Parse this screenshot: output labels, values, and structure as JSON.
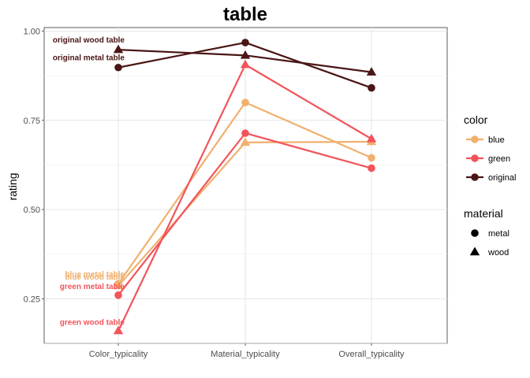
{
  "chart_data": {
    "type": "line",
    "title": "table",
    "xlabel": "",
    "ylabel": "rating",
    "categories": [
      "Color_typicality",
      "Material_typicality",
      "Overall_typicality"
    ],
    "ylim": [
      0.125,
      1.01
    ],
    "yticks": [
      0.25,
      0.5,
      0.75,
      1.0
    ],
    "ytick_labels": [
      "0.25",
      "0.50",
      "0.75",
      "1.00"
    ],
    "grid": true,
    "legend_position": "right",
    "legends": {
      "color": {
        "title": "color",
        "entries": [
          {
            "label": "blue",
            "color": "#F0B06E"
          },
          {
            "label": "green",
            "color": "#F2545B"
          },
          {
            "label": "original",
            "color": "#4A1515"
          }
        ]
      },
      "material": {
        "title": "material",
        "entries": [
          {
            "label": "metal",
            "shape": "circle"
          },
          {
            "label": "wood",
            "shape": "triangle"
          }
        ]
      }
    },
    "series": [
      {
        "color": "original",
        "material": "wood",
        "stroke": "#4A1515",
        "marker": "triangle",
        "values": [
          0.948,
          0.932,
          0.885
        ]
      },
      {
        "color": "original",
        "material": "metal",
        "stroke": "#4A1515",
        "marker": "circle",
        "values": [
          0.898,
          0.968,
          0.841
        ]
      },
      {
        "color": "blue",
        "material": "metal",
        "stroke": "#F0B06E",
        "marker": "circle",
        "values": [
          0.292,
          0.8,
          0.645
        ]
      },
      {
        "color": "blue",
        "material": "wood",
        "stroke": "#F0B06E",
        "marker": "triangle",
        "values": [
          0.286,
          0.688,
          0.69
        ]
      },
      {
        "color": "green",
        "material": "wood",
        "stroke": "#F2545B",
        "marker": "triangle",
        "values": [
          0.16,
          0.906,
          0.698
        ]
      },
      {
        "color": "green",
        "material": "metal",
        "stroke": "#F2545B",
        "marker": "circle",
        "values": [
          0.26,
          0.714,
          0.616
        ]
      }
    ],
    "annotations": [
      {
        "text": "original wood table",
        "y": 0.976,
        "color": "#4A1515"
      },
      {
        "text": "original metal table",
        "y": 0.926,
        "color": "#4A1515"
      },
      {
        "text": "blue metal table",
        "y": 0.319,
        "color": "#F0B06E"
      },
      {
        "text": "blue wood table",
        "y": 0.311,
        "color": "#F0B06E"
      },
      {
        "text": "green metal table",
        "y": 0.285,
        "color": "#F2545B"
      },
      {
        "text": "green wood table",
        "y": 0.185,
        "color": "#F2545B"
      }
    ]
  }
}
